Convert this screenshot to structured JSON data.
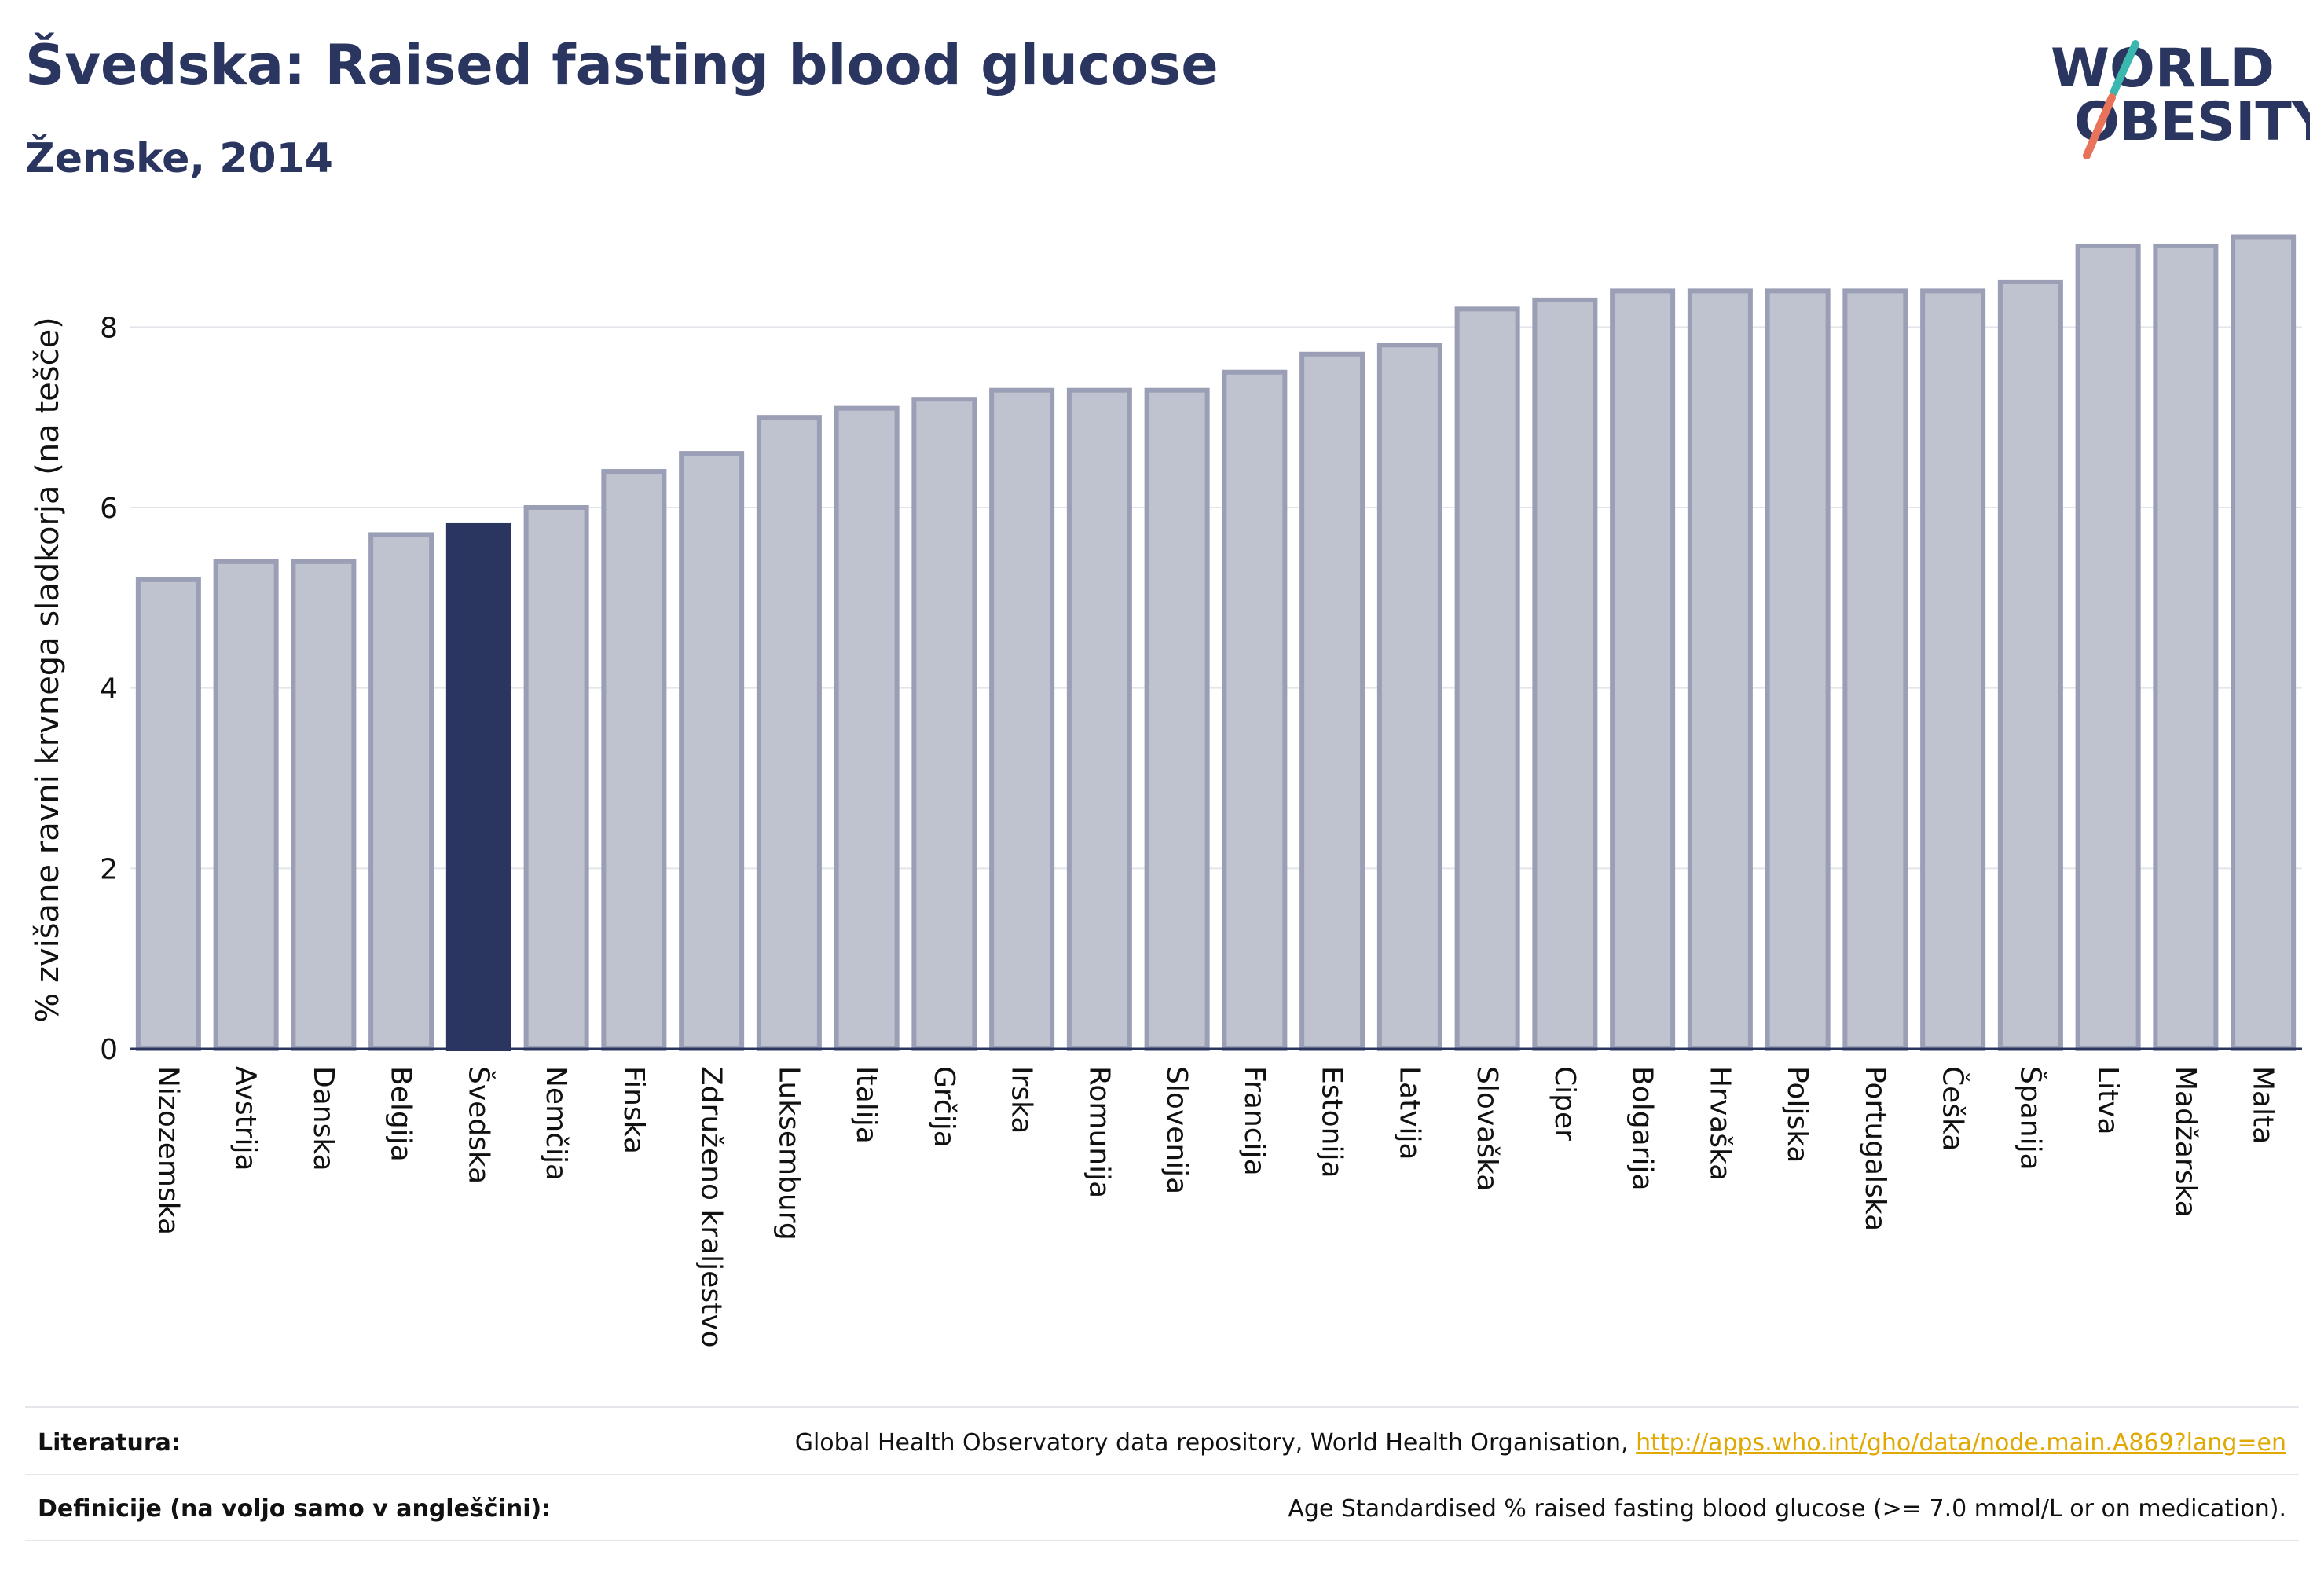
{
  "header": {
    "title": "Švedska: Raised fasting blood glucose",
    "subtitle": "Ženske, 2014",
    "logo_line1": "WORLD",
    "logo_line2": "OBESITY"
  },
  "colors": {
    "highlight_bar": "#2a3560",
    "default_bar_fill": "#bfc2cf",
    "default_bar_stroke": "#9a9fb5",
    "text": "#2a3560",
    "link": "#e0a800",
    "logo_teal": "#3ab8b0",
    "logo_coral": "#e8735a"
  },
  "chart_data": {
    "type": "bar",
    "title": "Švedska: Raised fasting blood glucose",
    "subtitle": "Ženske, 2014",
    "xlabel": "",
    "ylabel": "% zvišane ravni krvnega sladkorja (na tešče)",
    "ylim": [
      0,
      9.1
    ],
    "yticks": [
      0,
      2,
      4,
      6,
      8
    ],
    "grid": true,
    "highlight": "Švedska",
    "categories": [
      "Nizozemska",
      "Avstrija",
      "Danska",
      "Belgija",
      "Švedska",
      "Nemčija",
      "Finska",
      "Združeno kraljestvo",
      "Luksemburg",
      "Italija",
      "Grčija",
      "Irska",
      "Romunija",
      "Slovenija",
      "Francija",
      "Estonija",
      "Latvija",
      "Slovaška",
      "Ciper",
      "Bolgarija",
      "Hrvaška",
      "Poljska",
      "Portugalska",
      "Češka",
      "Španija",
      "Litva",
      "Madžarska",
      "Malta"
    ],
    "values": [
      5.2,
      5.4,
      5.4,
      5.7,
      5.8,
      6.0,
      6.4,
      6.6,
      7.0,
      7.1,
      7.2,
      7.3,
      7.3,
      7.3,
      7.5,
      7.7,
      7.8,
      8.2,
      8.3,
      8.4,
      8.4,
      8.4,
      8.4,
      8.4,
      8.5,
      8.9,
      8.9,
      9.0
    ]
  },
  "footer": {
    "references_label": "Literatura:",
    "references_text": "Global Health Observatory data repository, World Health Organisation, ",
    "references_link": "http://apps.who.int/gho/data/node.main.A869?lang=en",
    "definitions_label": "Definicije (na voljo samo v angleščini):",
    "definitions_text": "Age Standardised % raised fasting blood glucose (>= 7.0 mmol/L or on medication)."
  }
}
